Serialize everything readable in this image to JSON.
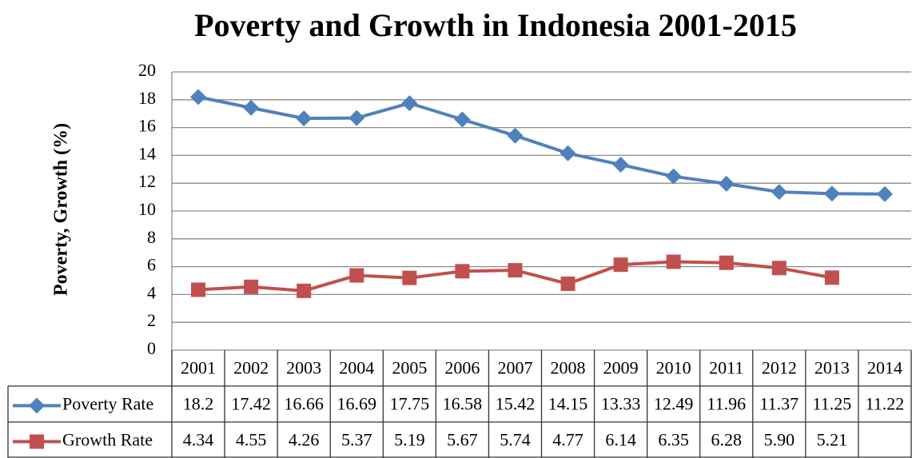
{
  "chart_data": {
    "type": "line",
    "title": "Poverty and Growth in Indonesia 2001-2015",
    "y_label": "Poverty, Growth (%)",
    "categories": [
      "2001",
      "2002",
      "2003",
      "2004",
      "2005",
      "2006",
      "2007",
      "2008",
      "2009",
      "2010",
      "2011",
      "2012",
      "2013",
      "2014"
    ],
    "series": [
      {
        "name": "Poverty Rate",
        "color": "#4f81bd",
        "marker": "diamond",
        "values": [
          18.2,
          17.42,
          16.66,
          16.69,
          17.75,
          16.58,
          15.42,
          14.15,
          13.33,
          12.49,
          11.96,
          11.37,
          11.25,
          11.22
        ]
      },
      {
        "name": "Growth Rate",
        "color": "#c0504d",
        "marker": "square",
        "values": [
          4.34,
          4.55,
          4.26,
          5.37,
          5.19,
          5.67,
          5.74,
          4.77,
          6.14,
          6.35,
          6.28,
          5.9,
          5.21,
          null
        ],
        "value_labels": [
          "4.34",
          "4.55",
          "4.26",
          "5.37",
          "5.19",
          "5.67",
          "5.74",
          "4.77",
          "6.14",
          "6.35",
          "6.28",
          "5.90",
          "5.21",
          null
        ]
      }
    ],
    "ylim": [
      0,
      20
    ],
    "yticks": [
      0,
      2,
      4,
      6,
      8,
      10,
      12,
      14,
      16,
      18,
      20
    ],
    "grid": true,
    "data_table": true
  }
}
